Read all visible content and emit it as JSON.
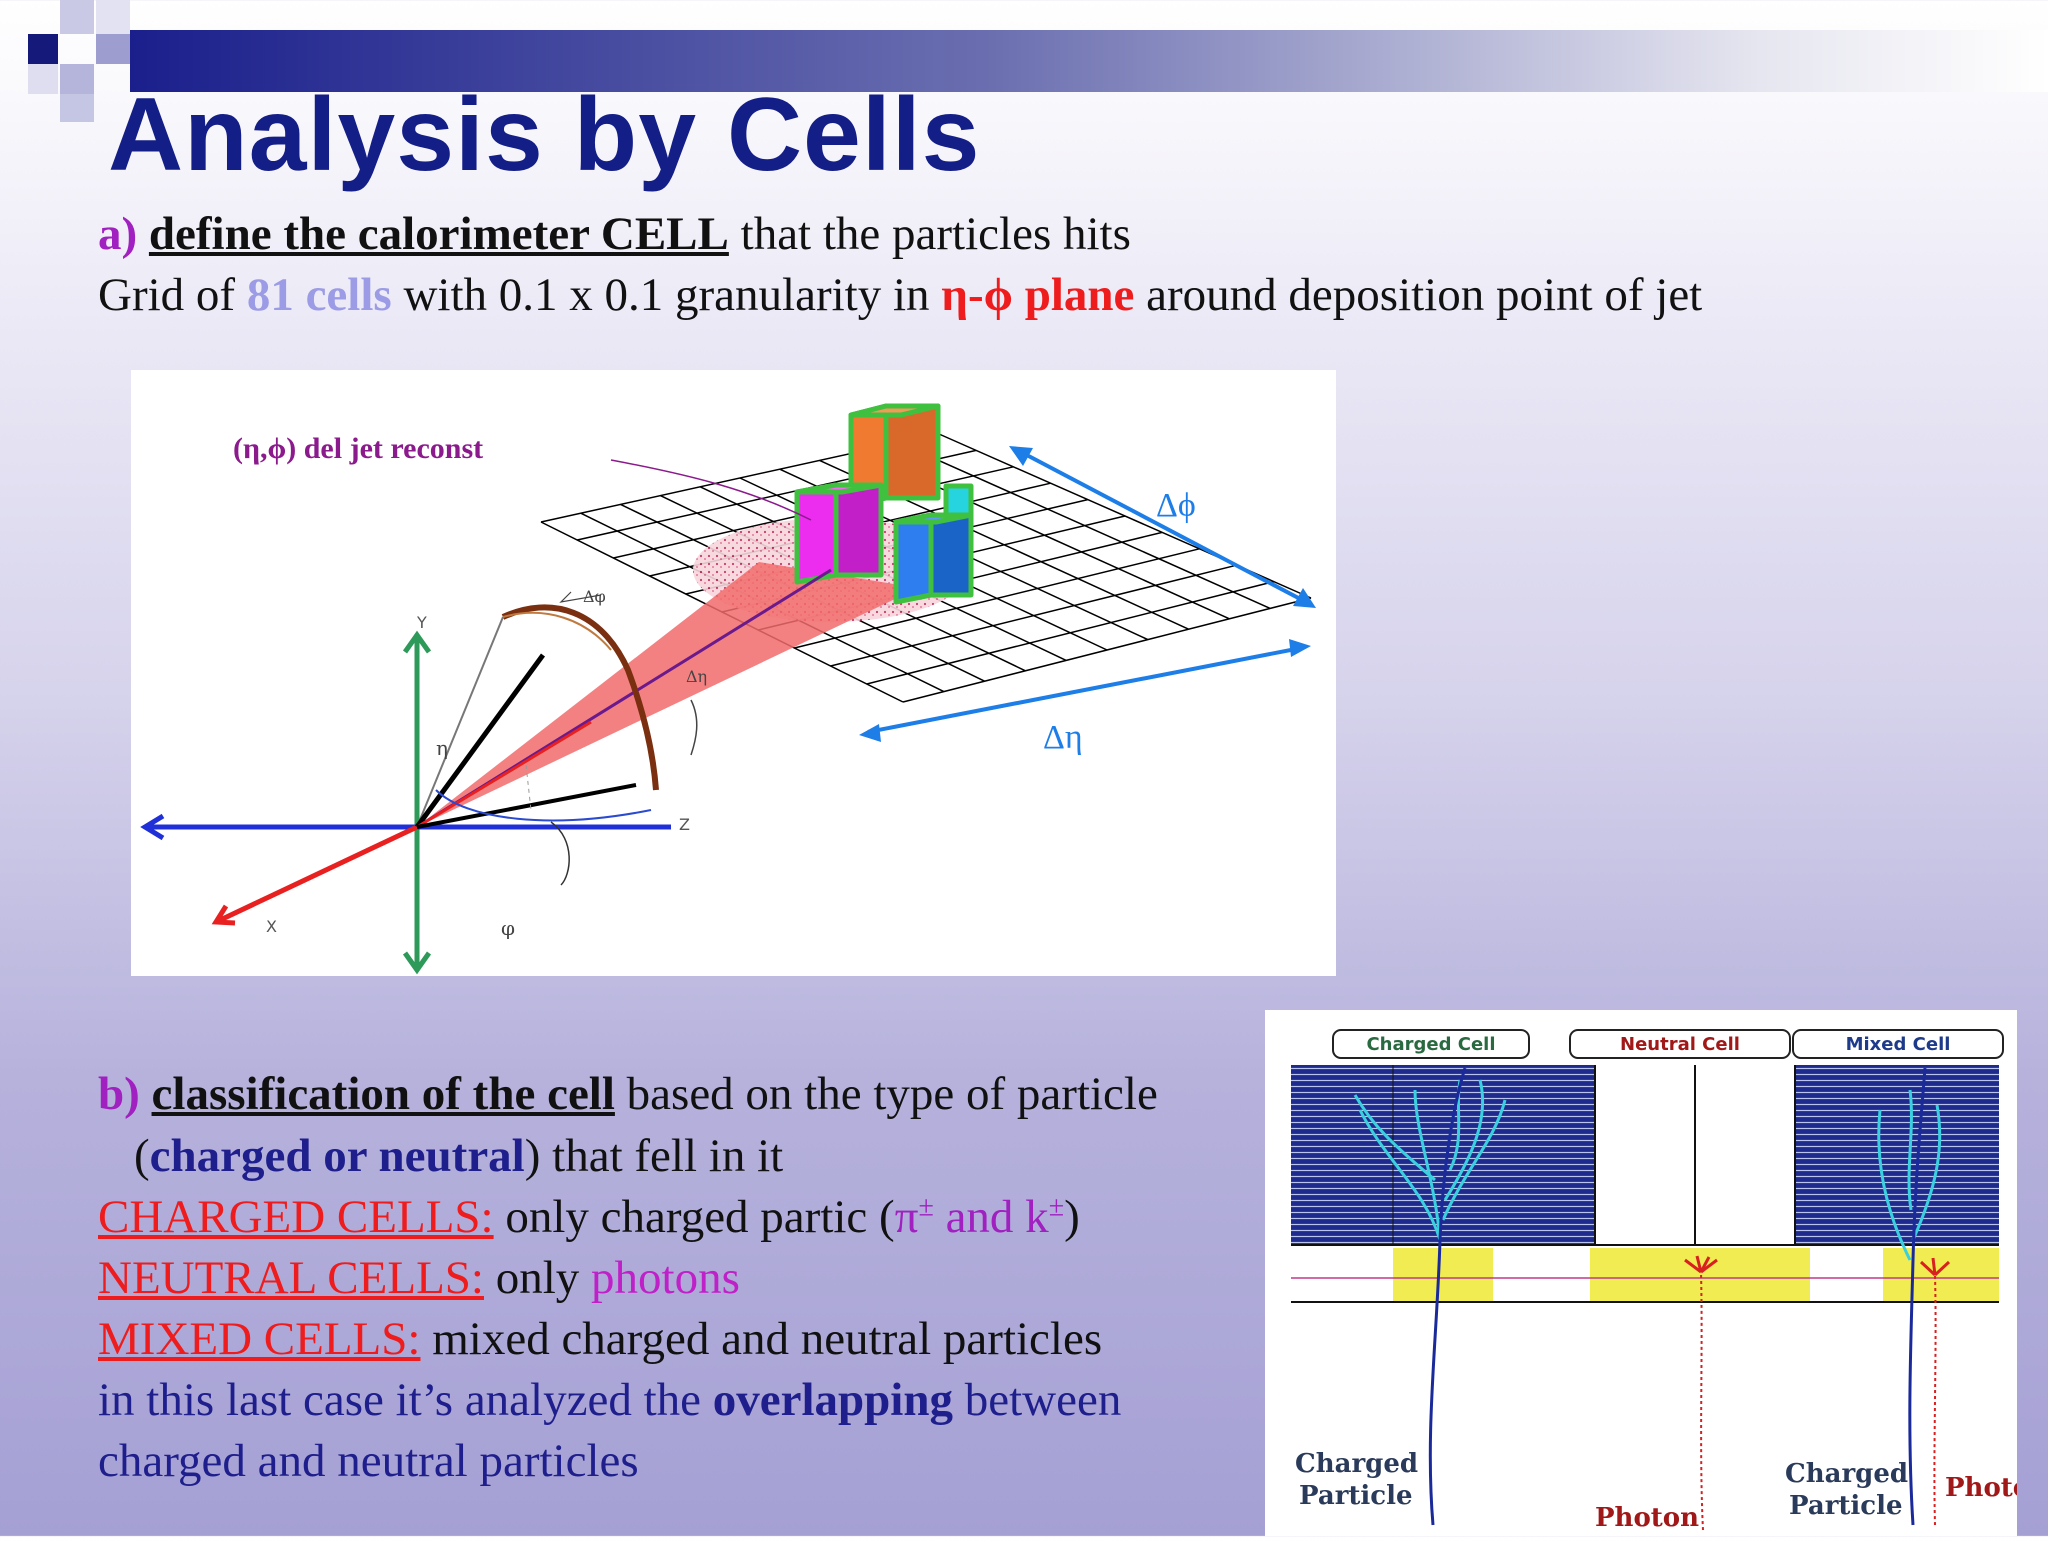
{
  "title": "Analysis by Cells",
  "section_a": {
    "marker": "a)",
    "heading": "define the calorimeter CELL",
    "text_rest": " that the particles hits",
    "line2": {
      "p1": "Grid of ",
      "cells": "81 cells",
      "p2": " with 0.1 x 0.1 granularity in ",
      "plane": "η-ϕ plane",
      "p3": " around deposition point of   jet"
    }
  },
  "diagram_a": {
    "jet_label": "(η,ϕ) del jet reconst",
    "delta_phi": "Δϕ",
    "delta_eta": "Δη",
    "small_dphi": "Δφ",
    "small_deta": "Δη",
    "axis_x": "X",
    "axis_y": "Y",
    "axis_z": "Z",
    "eta": "η",
    "phi": "φ"
  },
  "section_b": {
    "marker": "b)",
    "heading": "classification of the cell",
    "text_rest": " based on the type of particle",
    "line2_open": "(",
    "line2_bold": "charged or neutral",
    "line2_rest": ") that fell in it",
    "charged_label": "CHARGED CELLS:",
    "charged_text": " only charged partic (",
    "pi": "π",
    "pm": "±",
    "and_k": " and k",
    "charged_close": ")",
    "neutral_label": "NEUTRAL CELLS:",
    "neutral_text": " only ",
    "photons": "photons",
    "mixed_label": "MIXED CELLS:",
    "mixed_text": " mixed charged and neutral particles",
    "line_last1_a": "in this last case it’s analyzed the ",
    "line_last1_bold": "overlapping",
    "line_last1_b": " between",
    "line_last2": "charged and neutral particles"
  },
  "diagram_b": {
    "charged_cell": "Charged Cell",
    "neutral_cell": "Neutral Cell",
    "mixed_cell": "Mixed Cell",
    "charged_particle_1": "Charged",
    "charged_particle_2": "Particle",
    "photon": "Photon",
    "charged_particle_b1": "Charged",
    "charged_particle_b2": "Particle",
    "photon_right": "Photo"
  },
  "colors": {
    "title": "#141e87",
    "accent_red": "#ee1c1c",
    "accent_purple": "#a020c0",
    "accent_lavender": "#9b9be6",
    "accent_navy": "#1e1e8c"
  }
}
